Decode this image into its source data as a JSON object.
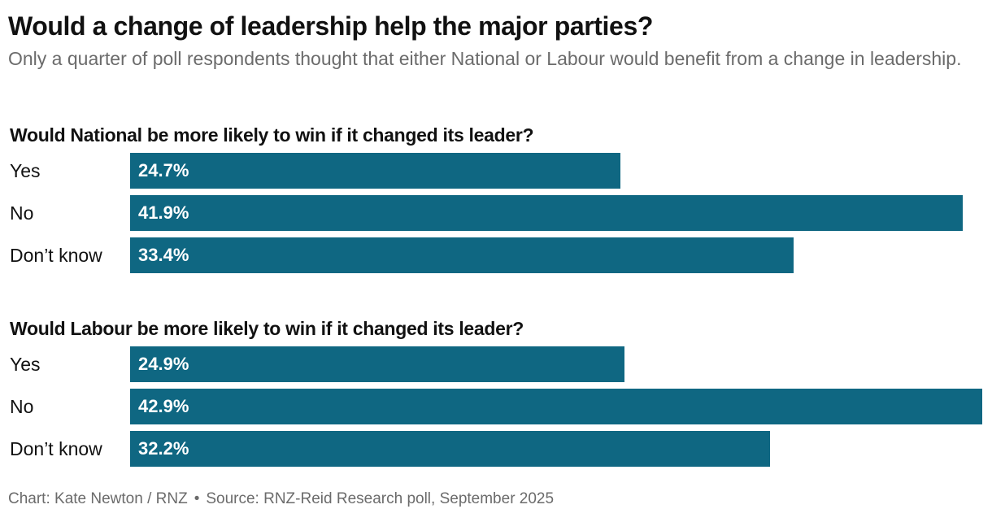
{
  "title": "Would a change of leadership help the major parties?",
  "subtitle": "Only a quarter of poll respondents thought that either National or Labour would benefit from a change in leadership.",
  "chart_data": [
    {
      "type": "bar",
      "orientation": "horizontal",
      "title": "Would National be more likely to win if it changed its leader?",
      "categories": [
        "Yes",
        "No",
        "Don’t know"
      ],
      "values": [
        24.7,
        41.9,
        33.4
      ],
      "value_labels": [
        "24.7%",
        "41.9%",
        "33.4%"
      ],
      "unit": "%",
      "xlim": [
        0,
        42.9
      ],
      "grid": false,
      "bar_color": "#0f6782"
    },
    {
      "type": "bar",
      "orientation": "horizontal",
      "title": "Would Labour be more likely to win if it changed its leader?",
      "categories": [
        "Yes",
        "No",
        "Don’t know"
      ],
      "values": [
        24.9,
        42.9,
        32.2
      ],
      "value_labels": [
        "24.9%",
        "42.9%",
        "32.2%"
      ],
      "unit": "%",
      "xlim": [
        0,
        42.9
      ],
      "grid": false,
      "bar_color": "#0f6782"
    }
  ],
  "footer": {
    "credit": "Chart: Kate Newton / RNZ",
    "separator": "•",
    "source": "Source: RNZ-Reid Research poll, September 2025"
  }
}
